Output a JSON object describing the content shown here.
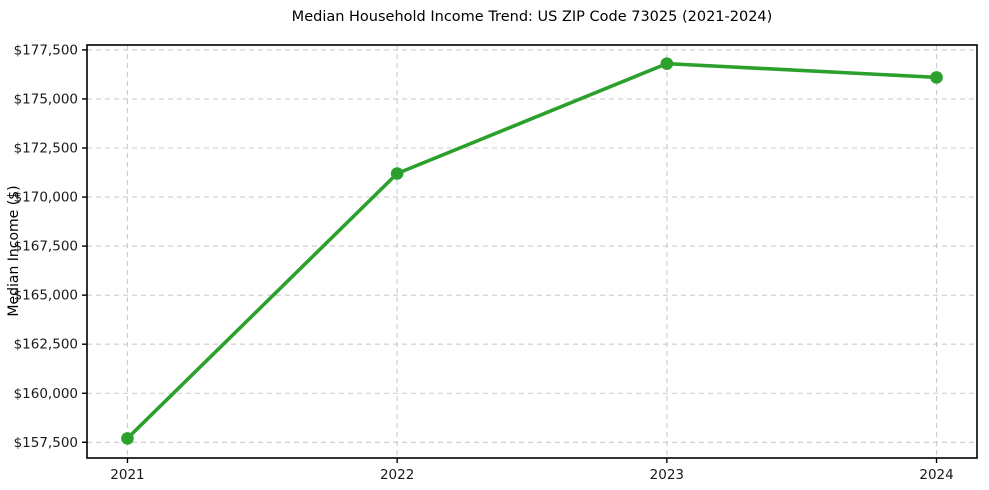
{
  "chart_data": {
    "type": "line",
    "title": "Median Household Income Trend: US ZIP Code 73025 (2021-2024)",
    "xlabel": "",
    "ylabel": "Median Income ($)",
    "categories": [
      "2021",
      "2022",
      "2023",
      "2024"
    ],
    "values": [
      157700,
      171200,
      176800,
      176100
    ],
    "y_ticks": {
      "values": [
        157500,
        160000,
        162500,
        165000,
        167500,
        170000,
        172500,
        175000,
        177500
      ],
      "labels": [
        "$157,500",
        "$160,000",
        "$162,500",
        "$165,000",
        "$167,500",
        "$170,000",
        "$172,500",
        "$175,000",
        "$177,500"
      ]
    },
    "ylim": [
      156700,
      177750
    ],
    "grid": true,
    "grid_style": "dashed",
    "legend_position": "none",
    "marker": "circle",
    "colors": {
      "line": "#2ca02c",
      "marker": "#2ca02c",
      "grid": "#cccccc",
      "axis": "#000000",
      "tick_text": "#1a1a1a"
    }
  }
}
